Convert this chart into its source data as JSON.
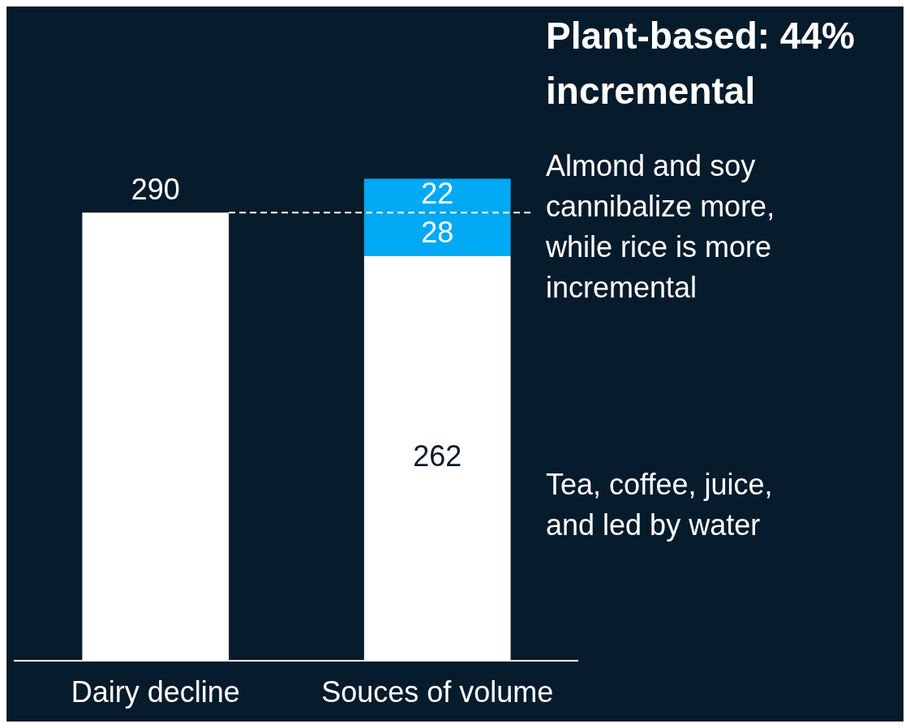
{
  "chart_data": {
    "type": "bar",
    "title": "Plant-based: 44% incremental",
    "categories": [
      "Dairy decline",
      "Souces of volume"
    ],
    "stacked": true,
    "data_labels": true,
    "grid": false,
    "legend": false,
    "series": [
      {
        "color": "#ffffff",
        "values": [
          290,
          262
        ]
      },
      {
        "color": "#00a9f4",
        "values": [
          null,
          28
        ]
      },
      {
        "color": "#00a9f4",
        "values": [
          null,
          22
        ]
      }
    ],
    "ref_lines": [
      {
        "axis": "y",
        "value": 290,
        "color": "#ffffff",
        "line_style": "dashed"
      }
    ],
    "annotations": [
      "Almond and soy cannibalize more, while rice is more incremental",
      "Tea, coffee, juice, and led by water"
    ]
  }
}
